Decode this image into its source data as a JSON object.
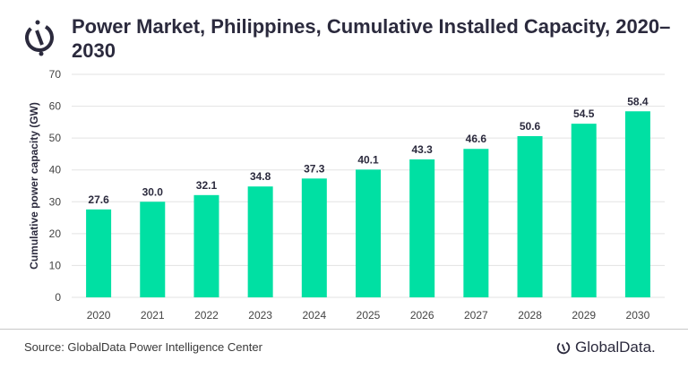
{
  "header": {
    "title": "Power Market, Philippines, Cumulative Installed Capacity, 2020–2030"
  },
  "chart_data": {
    "type": "bar",
    "title": "Power Market, Philippines, Cumulative Installed Capacity, 2020–2030",
    "xlabel": "",
    "ylabel": "Cumulative power capacity (GW)",
    "categories": [
      "2020",
      "2021",
      "2022",
      "2023",
      "2024",
      "2025",
      "2026",
      "2027",
      "2028",
      "2029",
      "2030"
    ],
    "values": [
      27.6,
      30.0,
      32.1,
      34.8,
      37.3,
      40.1,
      43.3,
      46.6,
      50.6,
      54.5,
      58.4
    ],
    "data_labels": [
      "27.6",
      "30.0",
      "32.1",
      "34.8",
      "37.3",
      "40.1",
      "43.3",
      "46.6",
      "50.6",
      "54.5",
      "58.4"
    ],
    "ylim": [
      0,
      70
    ],
    "yticks": [
      0,
      10,
      20,
      30,
      40,
      50,
      60,
      70
    ],
    "grid": true,
    "legend": "none",
    "bar_color": "#00e0a3"
  },
  "footer": {
    "source": "Source: GlobalData Power Intelligence Center",
    "brand": "GlobalData."
  },
  "icons": {
    "logo": "globaldata-logo-icon"
  }
}
